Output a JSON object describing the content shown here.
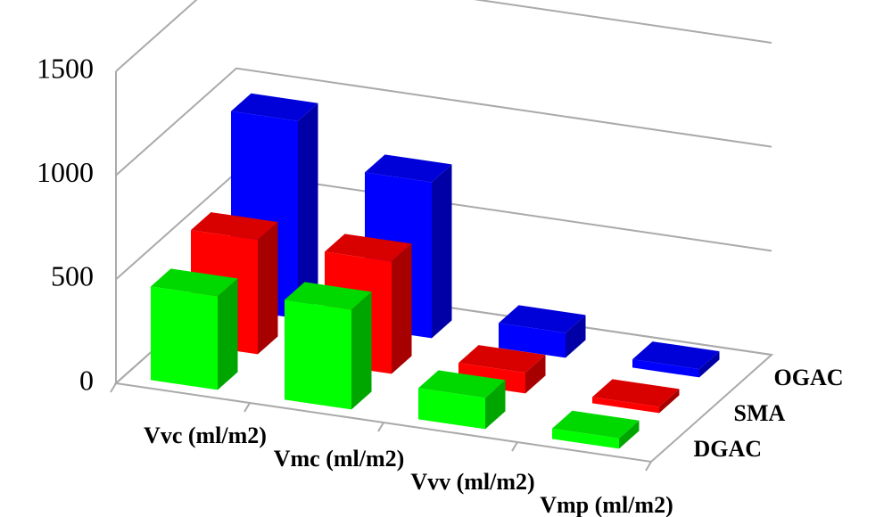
{
  "chart_data": {
    "type": "bar3d",
    "categories": [
      "Vvc (ml/m2)",
      "Vmc (ml/m2)",
      "Vvv (ml/m2)",
      "Vmp (ml/m2)"
    ],
    "series": [
      {
        "name": "DGAC",
        "color": "#00ff00",
        "values": [
          450,
          480,
          150,
          50
        ]
      },
      {
        "name": "SMA",
        "color": "#ff0000",
        "values": [
          550,
          540,
          100,
          30
        ]
      },
      {
        "name": "OGAC",
        "color": "#0000ff",
        "values": [
          950,
          750,
          120,
          40
        ]
      }
    ],
    "ylim": [
      0,
      1500
    ],
    "yticks": [
      0,
      500,
      1000,
      1500
    ],
    "grid": true
  }
}
